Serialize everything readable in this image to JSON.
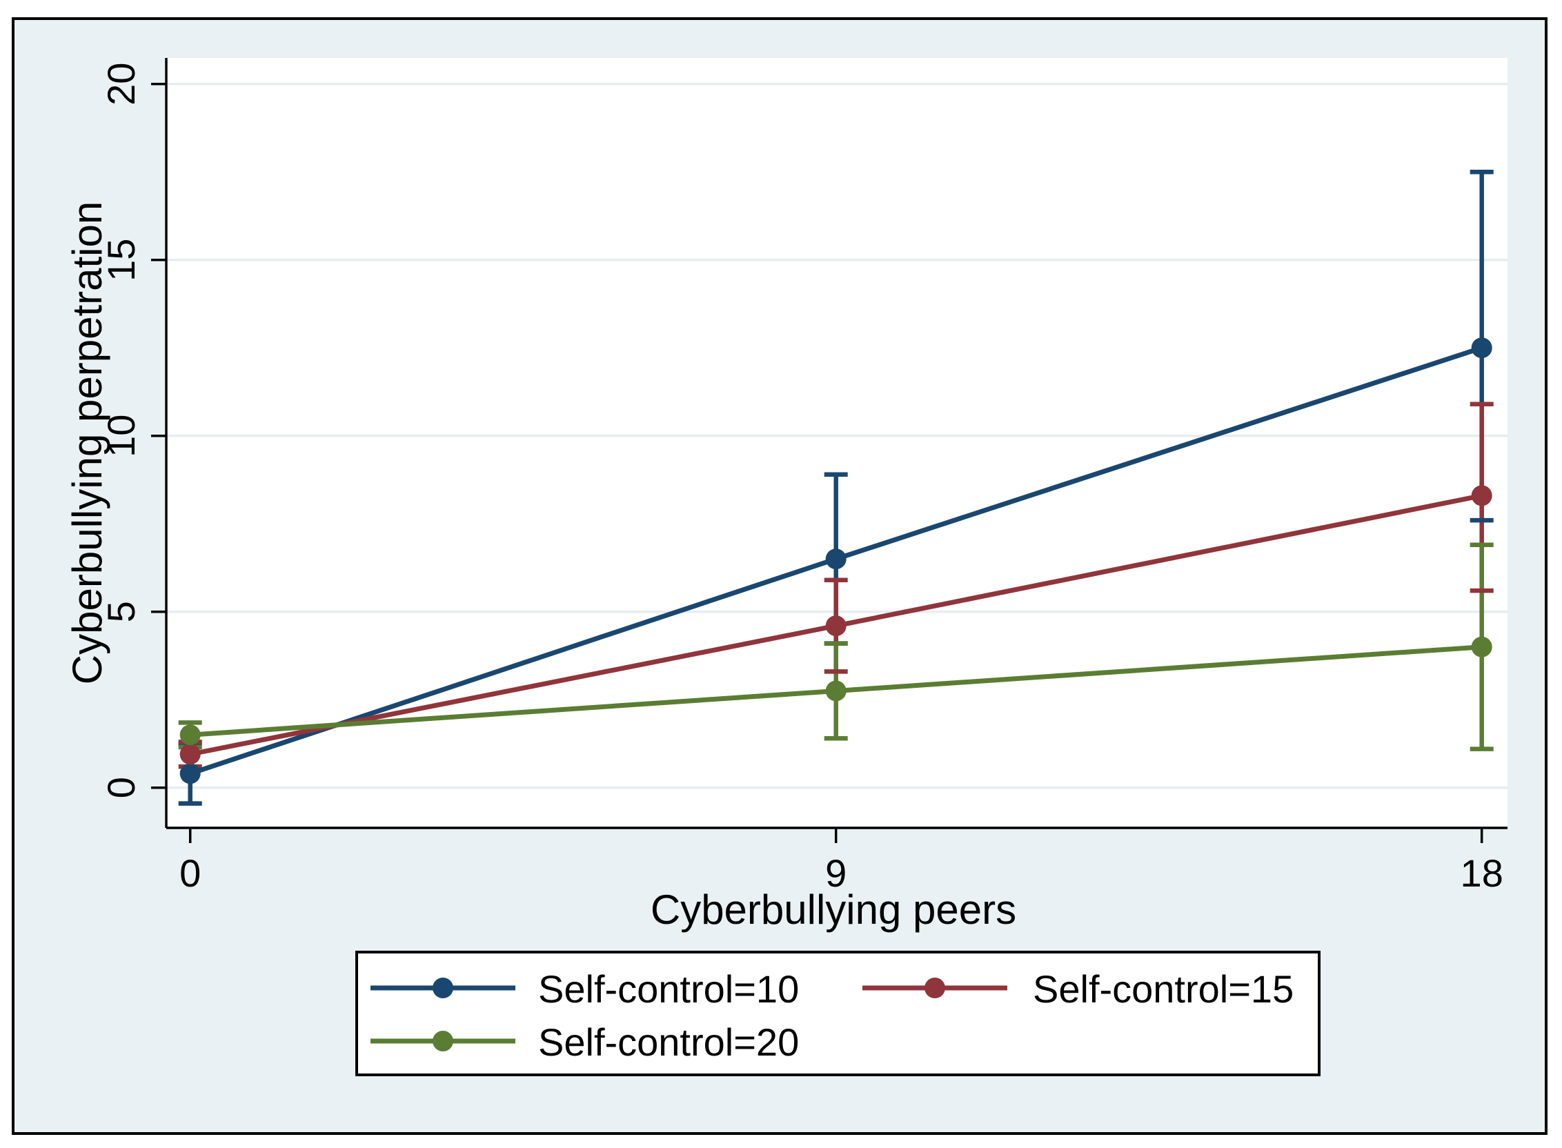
{
  "figure": {
    "frame_bg": "#eaf1f4",
    "border_color": "#000000",
    "plot_bg": "#ffffff",
    "grid_color": "#e6edf1",
    "axis_color": "#000000",
    "text_color": "#000000"
  },
  "chart_data": {
    "type": "line",
    "title": "",
    "xlabel": "Cyberbullying peers",
    "ylabel": "Cyberbullying perpetration",
    "x_ticks": [
      0,
      9,
      18
    ],
    "y_ticks": [
      0,
      5,
      10,
      15,
      20
    ],
    "xlim": [
      -0.33,
      18.36
    ],
    "ylim": [
      -1.14,
      20.74
    ],
    "grid": "horizontal",
    "legend_position": "bottom-box",
    "x": [
      0,
      9,
      18
    ],
    "series": [
      {
        "name": "Self-control=10",
        "color": "#1a476f",
        "values": [
          0.4,
          6.5,
          12.5
        ],
        "ci_low": [
          -0.45,
          4.1,
          7.6
        ],
        "ci_high": [
          1.25,
          8.9,
          17.5
        ]
      },
      {
        "name": "Self-control=15",
        "color": "#90353b",
        "values": [
          0.95,
          4.6,
          8.3
        ],
        "ci_low": [
          0.6,
          3.3,
          5.6
        ],
        "ci_high": [
          1.3,
          5.9,
          10.9
        ]
      },
      {
        "name": "Self-control=20",
        "color": "#5a7d33",
        "values": [
          1.5,
          2.75,
          4.0
        ],
        "ci_low": [
          1.15,
          1.4,
          1.1
        ],
        "ci_high": [
          1.85,
          4.1,
          6.9
        ]
      }
    ]
  }
}
